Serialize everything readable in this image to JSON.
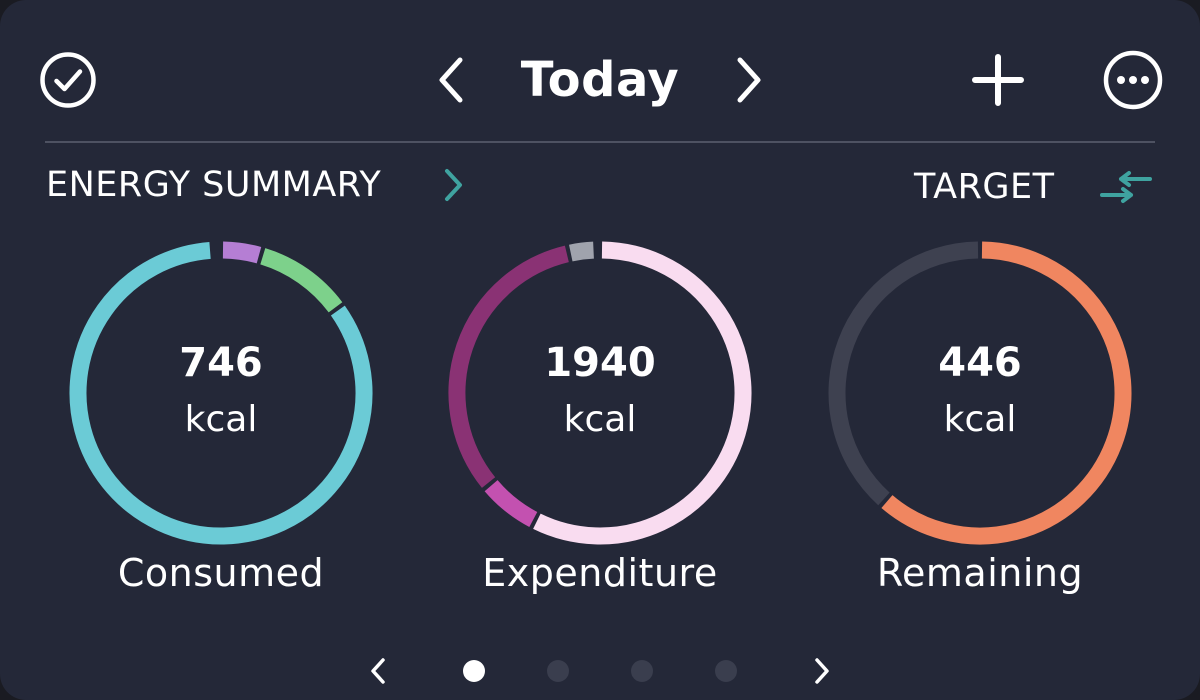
{
  "header": {
    "title": "Today",
    "icons": {
      "done": "check-circle-icon",
      "prev": "chevron-left-icon",
      "next": "chevron-right-icon",
      "add": "plus-icon",
      "more": "more-horizontal-circle-icon"
    }
  },
  "summary": {
    "label": "ENERGY SUMMARY",
    "target_label": "TARGET",
    "target_icon": "compare-arrows-icon"
  },
  "rings": [
    {
      "value": "746",
      "unit": "kcal",
      "caption": "Consumed",
      "segments": [
        {
          "fraction": 0.045,
          "color": "#b57ed4"
        },
        {
          "fraction": 0.105,
          "color": "#7dd18b"
        },
        {
          "fraction": 0.84,
          "color": "#6bcbd6"
        }
      ]
    },
    {
      "value": "1940",
      "unit": "kcal",
      "caption": "Expenditure",
      "segments": [
        {
          "fraction": 0.575,
          "color": "#f9dcf0"
        },
        {
          "fraction": 0.065,
          "color": "#c351b0"
        },
        {
          "fraction": 0.325,
          "color": "#8a3274"
        },
        {
          "fraction": 0.03,
          "color": "#a0a3ad"
        }
      ]
    },
    {
      "value": "446",
      "unit": "kcal",
      "caption": "Remaining",
      "segments": [
        {
          "fraction": 0.615,
          "color": "#f08660"
        },
        {
          "fraction": 0.385,
          "color": "#3e4150"
        }
      ]
    }
  ],
  "pager": {
    "pages": 4,
    "active": 0,
    "prev_icon": "chevron-left-icon",
    "next_icon": "chevron-right-icon"
  },
  "colors": {
    "background": "#242838",
    "accent": "#3fa3a0",
    "divider": "#4e5262"
  }
}
